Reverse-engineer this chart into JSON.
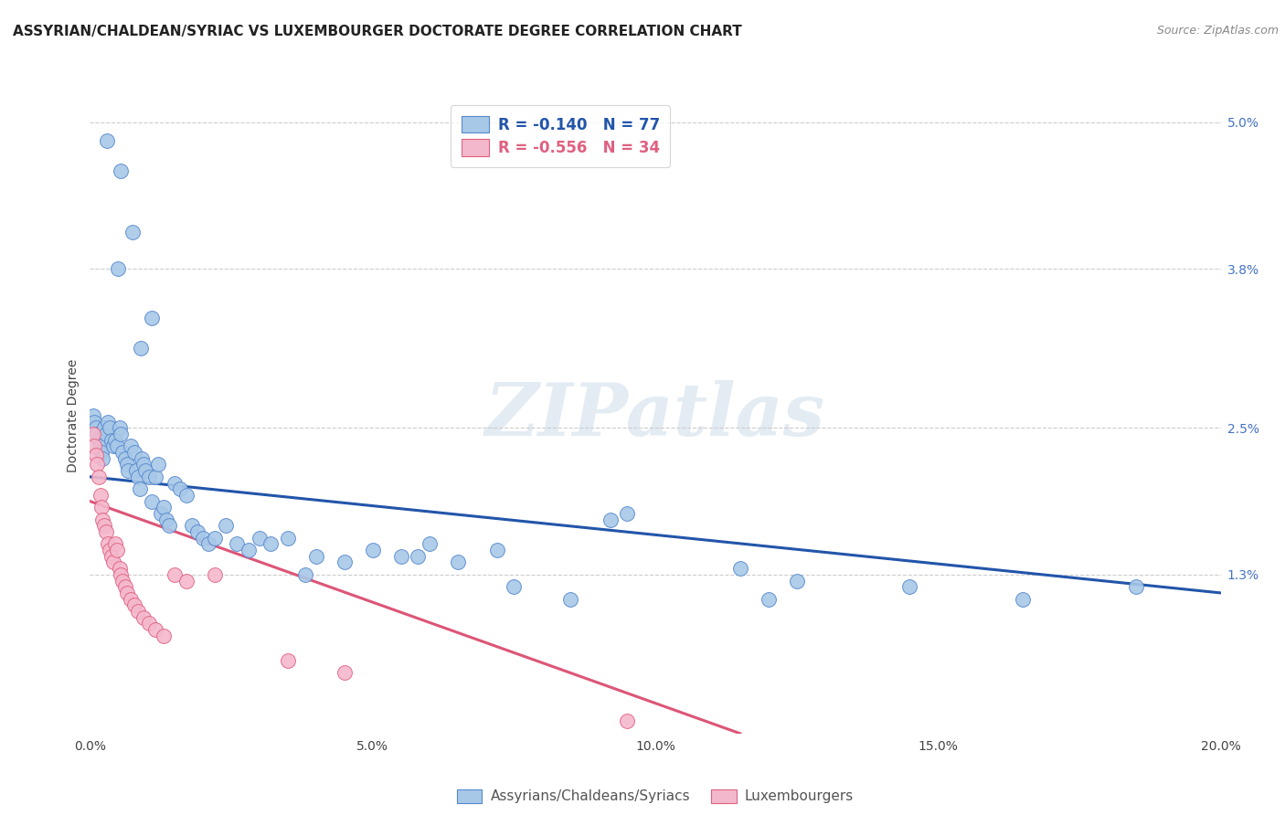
{
  "title": "ASSYRIAN/CHALDEAN/SYRIAC VS LUXEMBOURGER DOCTORATE DEGREE CORRELATION CHART",
  "source": "Source: ZipAtlas.com",
  "ylabel": "Doctorate Degree",
  "xmin": 0.0,
  "xmax": 20.0,
  "ymin": 0.0,
  "ymax": 5.2,
  "yticks_right": [
    1.3,
    2.5,
    3.8,
    5.0
  ],
  "ytick_labels_right": [
    "1.3%",
    "2.5%",
    "3.8%",
    "5.0%"
  ],
  "xticks": [
    0.0,
    5.0,
    10.0,
    15.0,
    20.0
  ],
  "xtick_labels": [
    "0.0%",
    "5.0%",
    "10.0%",
    "15.0%",
    "20.0%"
  ],
  "legend_labels": [
    "Assyrians/Chaldeans/Syriacs",
    "Luxembourgers"
  ],
  "legend_R": [
    "-0.140",
    "-0.556"
  ],
  "legend_N": [
    "77",
    "34"
  ],
  "blue_color": "#A8C8E8",
  "pink_color": "#F4B8CC",
  "blue_edge_color": "#5588CC",
  "pink_edge_color": "#E06080",
  "blue_line_color": "#2255AA",
  "pink_line_color": "#DD5577",
  "background_color": "#FFFFFF",
  "title_fontsize": 11,
  "watermark_text": "ZIPatlas",
  "blue_scatter_x": [
    0.3,
    0.55,
    0.75,
    0.5,
    1.1,
    0.9,
    0.05,
    0.08,
    0.1,
    0.12,
    0.15,
    0.18,
    0.2,
    0.22,
    0.25,
    0.28,
    0.32,
    0.35,
    0.38,
    0.42,
    0.45,
    0.48,
    0.52,
    0.55,
    0.58,
    0.62,
    0.65,
    0.68,
    0.72,
    0.78,
    0.82,
    0.85,
    0.88,
    0.92,
    0.95,
    0.98,
    1.05,
    1.1,
    1.15,
    1.2,
    1.25,
    1.3,
    1.35,
    1.4,
    1.5,
    1.6,
    1.7,
    1.8,
    1.9,
    2.0,
    2.1,
    2.2,
    2.4,
    2.6,
    2.8,
    3.0,
    3.2,
    3.5,
    4.0,
    4.5,
    5.0,
    5.5,
    6.0,
    6.5,
    7.5,
    8.5,
    9.5,
    11.5,
    12.5,
    14.5,
    16.5,
    18.5,
    3.8,
    5.8,
    7.2,
    9.2,
    12.0
  ],
  "blue_scatter_y": [
    4.85,
    4.6,
    4.1,
    3.8,
    3.4,
    3.15,
    2.6,
    2.55,
    2.5,
    2.45,
    2.4,
    2.35,
    2.3,
    2.25,
    2.5,
    2.45,
    2.55,
    2.5,
    2.4,
    2.35,
    2.4,
    2.35,
    2.5,
    2.45,
    2.3,
    2.25,
    2.2,
    2.15,
    2.35,
    2.3,
    2.15,
    2.1,
    2.0,
    2.25,
    2.2,
    2.15,
    2.1,
    1.9,
    2.1,
    2.2,
    1.8,
    1.85,
    1.75,
    1.7,
    2.05,
    2.0,
    1.95,
    1.7,
    1.65,
    1.6,
    1.55,
    1.6,
    1.7,
    1.55,
    1.5,
    1.6,
    1.55,
    1.6,
    1.45,
    1.4,
    1.5,
    1.45,
    1.55,
    1.4,
    1.2,
    1.1,
    1.8,
    1.35,
    1.25,
    1.2,
    1.1,
    1.2,
    1.3,
    1.45,
    1.5,
    1.75,
    1.1
  ],
  "pink_scatter_x": [
    0.05,
    0.08,
    0.1,
    0.12,
    0.15,
    0.18,
    0.2,
    0.22,
    0.25,
    0.28,
    0.32,
    0.35,
    0.38,
    0.42,
    0.45,
    0.48,
    0.52,
    0.55,
    0.58,
    0.62,
    0.65,
    0.72,
    0.78,
    0.85,
    0.95,
    1.05,
    1.15,
    1.3,
    1.5,
    1.7,
    2.2,
    3.5,
    4.5,
    9.5
  ],
  "pink_scatter_y": [
    2.45,
    2.35,
    2.28,
    2.2,
    2.1,
    1.95,
    1.85,
    1.75,
    1.7,
    1.65,
    1.55,
    1.5,
    1.45,
    1.4,
    1.55,
    1.5,
    1.35,
    1.3,
    1.25,
    1.2,
    1.15,
    1.1,
    1.05,
    1.0,
    0.95,
    0.9,
    0.85,
    0.8,
    1.3,
    1.25,
    1.3,
    0.6,
    0.5,
    0.1
  ],
  "blue_line_x": [
    0.0,
    20.0
  ],
  "blue_line_y": [
    2.1,
    1.15
  ],
  "pink_line_x": [
    0.0,
    11.5
  ],
  "pink_line_y": [
    1.9,
    0.0
  ]
}
